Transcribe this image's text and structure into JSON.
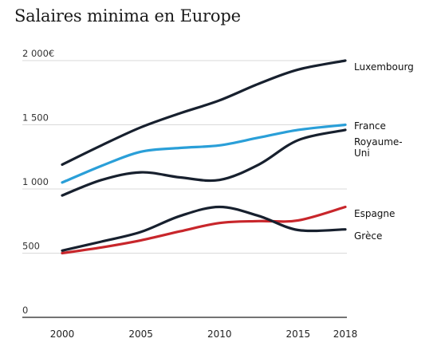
{
  "chart_data": {
    "type": "line",
    "title": "Salaires minima en Europe",
    "xlabel": "",
    "ylabel": "",
    "x": [
      2000,
      2002.5,
      2005,
      2007.5,
      2010,
      2012.5,
      2015,
      2018
    ],
    "xticks": [
      2000,
      2005,
      2010,
      2015,
      2018
    ],
    "xtick_labels": [
      "2000",
      "2005",
      "2010",
      "2015",
      "2018"
    ],
    "yticks": [
      0,
      500,
      1000,
      1500,
      2000
    ],
    "ytick_labels": [
      "0",
      "500",
      "1 000",
      "1 500",
      "2 000€"
    ],
    "ylim": [
      0,
      2000
    ],
    "xlim": [
      2000,
      2018
    ],
    "grid": true,
    "legend": "end-of-line labels",
    "series": [
      {
        "name": "Luxembourg",
        "label_lines": [
          "Luxembourg"
        ],
        "color": "#17202e",
        "values": [
          1190,
          1340,
          1480,
          1590,
          1690,
          1820,
          1930,
          2000
        ]
      },
      {
        "name": "France",
        "label_lines": [
          "France"
        ],
        "color": "#2a9fd8",
        "values": [
          1050,
          1180,
          1290,
          1320,
          1340,
          1400,
          1460,
          1500
        ]
      },
      {
        "name": "Royaume-Uni",
        "label_lines": [
          "Royaume-",
          "Uni"
        ],
        "color": "#17202e",
        "values": [
          950,
          1070,
          1130,
          1090,
          1070,
          1190,
          1380,
          1460
        ]
      },
      {
        "name": "Espagne",
        "label_lines": [
          "Espagne"
        ],
        "color": "#c8262b",
        "values": [
          500,
          545,
          600,
          670,
          735,
          750,
          755,
          860
        ]
      },
      {
        "name": "Grèce",
        "label_lines": [
          "Grèce"
        ],
        "color": "#17202e",
        "values": [
          520,
          590,
          665,
          790,
          860,
          790,
          680,
          685
        ]
      }
    ]
  }
}
